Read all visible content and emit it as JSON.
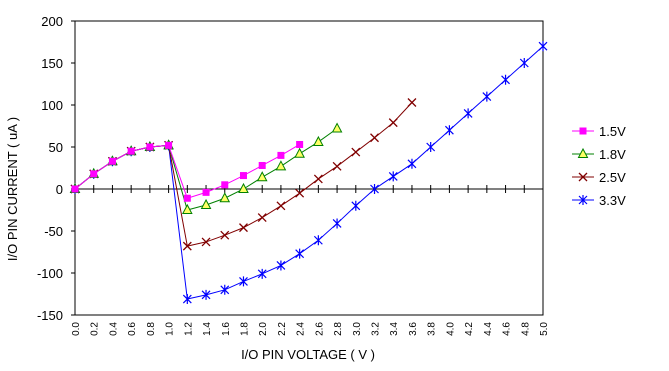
{
  "chart_data": {
    "type": "line",
    "title": "",
    "xlabel": "I/O PIN VOLTAGE ( V )",
    "ylabel": "I/O PIN CURRENT ( uA )",
    "xlim": [
      0,
      5
    ],
    "ylim": [
      -150,
      200
    ],
    "y_ticks": [
      -150,
      -100,
      -50,
      0,
      50,
      100,
      150,
      200
    ],
    "x_ticks": [
      "0.0",
      "0.2",
      "0.4",
      "0.6",
      "0.8",
      "1.0",
      "1.2",
      "1.4",
      "1.6",
      "1.8",
      "2.0",
      "2.2",
      "2.4",
      "2.6",
      "2.8",
      "3.0",
      "3.2",
      "3.4",
      "3.6",
      "3.8",
      "4.0",
      "4.2",
      "4.4",
      "4.6",
      "4.8",
      "5.0"
    ],
    "grid": false,
    "legend_position": "right",
    "series": [
      {
        "name": "1.5V",
        "color": "#ff00ff",
        "marker": "square",
        "x": [
          0,
          0.2,
          0.4,
          0.6,
          0.8,
          1.0,
          1.2,
          1.4,
          1.6,
          1.8,
          2.0,
          2.2,
          2.4
        ],
        "y": [
          0,
          18,
          33,
          45,
          50,
          52,
          -11,
          -4,
          5,
          16,
          28,
          40,
          53
        ]
      },
      {
        "name": "1.8V",
        "color": "#008000",
        "marker": "triangle",
        "fill": "#ffff66",
        "x": [
          0,
          0.2,
          0.4,
          0.6,
          0.8,
          1.0,
          1.2,
          1.4,
          1.6,
          1.8,
          2.0,
          2.2,
          2.4,
          2.6,
          2.8
        ],
        "y": [
          0,
          18,
          33,
          45,
          50,
          52,
          -25,
          -19,
          -11,
          0,
          14,
          27,
          42,
          56,
          72
        ]
      },
      {
        "name": "2.5V",
        "color": "#800000",
        "marker": "x",
        "x": [
          0,
          0.2,
          0.4,
          0.6,
          0.8,
          1.0,
          1.2,
          1.4,
          1.6,
          1.8,
          2.0,
          2.2,
          2.4,
          2.6,
          2.8,
          3.0,
          3.2,
          3.4,
          3.6
        ],
        "y": [
          0,
          18,
          33,
          45,
          50,
          52,
          -68,
          -63,
          -55,
          -46,
          -34,
          -20,
          -5,
          12,
          27,
          44,
          61,
          79,
          103
        ]
      },
      {
        "name": "3.3V",
        "color": "#0000ff",
        "marker": "asterisk",
        "x": [
          0,
          0.2,
          0.4,
          0.6,
          0.8,
          1.0,
          1.2,
          1.4,
          1.6,
          1.8,
          2.0,
          2.2,
          2.4,
          2.6,
          2.8,
          3.0,
          3.2,
          3.4,
          3.6,
          3.8,
          4.0,
          4.2,
          4.4,
          4.6,
          4.8,
          5.0
        ],
        "y": [
          0,
          18,
          33,
          45,
          50,
          52,
          -131,
          -126,
          -120,
          -110,
          -101,
          -91,
          -77,
          -61,
          -41,
          -20,
          0,
          15,
          30,
          50,
          70,
          90,
          110,
          130,
          150,
          170
        ]
      }
    ]
  }
}
